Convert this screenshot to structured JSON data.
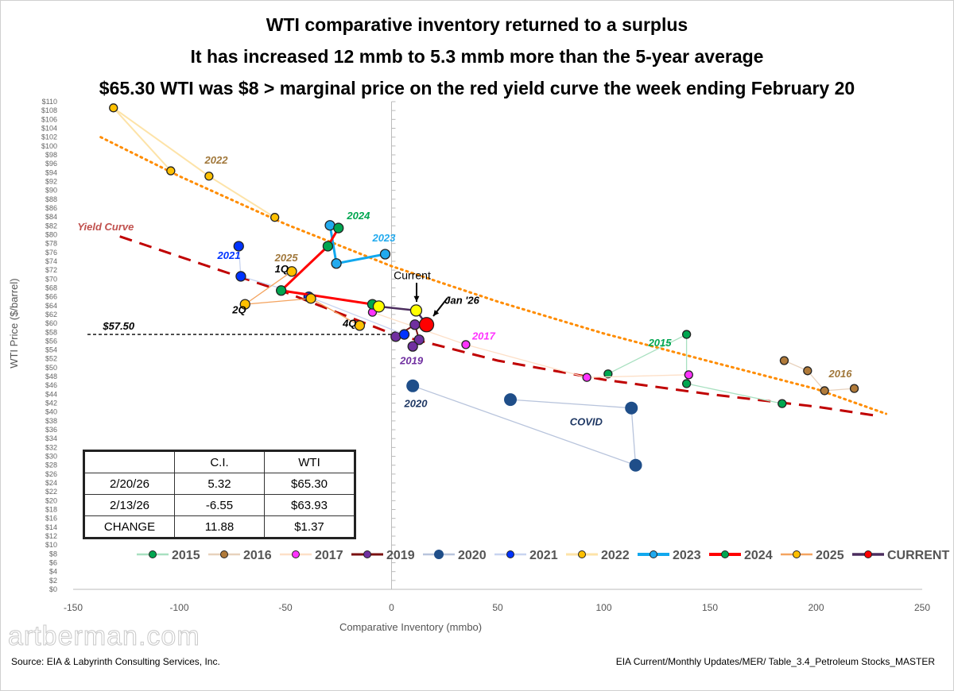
{
  "titles": [
    "WTI comparative inventory returned to a surplus",
    "It has increased 12 mmb to 5.3 mmb more than the 5-year average",
    "$65.30 WTI was $8 > marginal price on the red yield curve the week ending February 20"
  ],
  "footer": {
    "source": "Source:  EIA & Labyrinth Consulting Services, Inc.",
    "path": "EIA Current/Monthly Updates/MER/ Table_3.4_Petroleum Stocks_MASTER",
    "watermark": "artberman.com"
  },
  "table": {
    "headers": [
      "",
      "C.I.",
      "WTI"
    ],
    "rows": [
      [
        "2/20/26",
        "5.32",
        "$65.30"
      ],
      [
        "2/13/26",
        "-6.55",
        "$63.93"
      ],
      [
        "CHANGE",
        "11.88",
        "$1.37"
      ]
    ]
  },
  "chart_data": {
    "type": "scatter",
    "xlabel": "Comparative Inventory (mmbo)",
    "ylabel": "WTI Price ($/barrel)",
    "xlim": [
      -150,
      250
    ],
    "ylim": [
      0,
      110
    ],
    "xticks": [
      -150,
      -100,
      -50,
      0,
      50,
      100,
      150,
      200,
      250
    ],
    "ytick_step": 2,
    "ytick_prefix": "$",
    "grid": false,
    "legend_placement": "bottom",
    "reference_line": {
      "label": "$57.50",
      "y": 57.5
    },
    "series": [
      {
        "name": "2015",
        "color": "#00a650",
        "line": "#a8e0c0",
        "points": [
          [
            102,
            48.6
          ],
          [
            139,
            57.5
          ],
          [
            139,
            46.4
          ],
          [
            184,
            41.9
          ]
        ]
      },
      {
        "name": "2016",
        "color": "#b07a3a",
        "line": "#e8d2bd",
        "points": [
          [
            185,
            51.6
          ],
          [
            196,
            49.3
          ],
          [
            204,
            44.8
          ],
          [
            218,
            45.3
          ]
        ]
      },
      {
        "name": "2017",
        "color": "#ff33ff",
        "line": "#fde0c8",
        "points": [
          [
            -9,
            62.5
          ],
          [
            35,
            55.2
          ],
          [
            92,
            47.8
          ],
          [
            140,
            48.4
          ]
        ]
      },
      {
        "name": "2019",
        "color": "#7030a0",
        "line": "#7a1010",
        "points": [
          [
            2,
            57
          ],
          [
            11,
            59.7
          ],
          [
            13,
            56.3
          ],
          [
            10,
            54.8
          ]
        ]
      },
      {
        "name": "2020",
        "color": "#1f4e89",
        "line": "#b8c4dc",
        "points": [
          [
            10,
            45.9
          ],
          [
            115,
            28
          ],
          [
            113,
            40.9
          ],
          [
            56,
            42.8
          ]
        ]
      },
      {
        "name": "2021",
        "color": "#0033ff",
        "line": "#c8d4f0",
        "points": [
          [
            -72,
            77.4
          ],
          [
            -71,
            70.6
          ],
          [
            -39,
            66
          ],
          [
            6,
            57.5
          ]
        ]
      },
      {
        "name": "2022",
        "color": "#ffc000",
        "line": "#fde3a8",
        "points": [
          [
            -104,
            94.4
          ],
          [
            -131,
            108.6
          ],
          [
            -86,
            93.2
          ],
          [
            -55,
            83.9
          ]
        ]
      },
      {
        "name": "2023",
        "color": "#22aaee",
        "line": "#11a8ee",
        "points": [
          [
            -29,
            82.1
          ],
          [
            -26,
            73.5
          ],
          [
            -3,
            75.6
          ]
        ]
      },
      {
        "name": "2024",
        "color": "#00a650",
        "line": "#ff0000",
        "points": [
          [
            -25,
            81.5
          ],
          [
            -30,
            77.4
          ],
          [
            -52,
            67.4
          ],
          [
            -9,
            64.3
          ]
        ]
      },
      {
        "name": "2025",
        "color": "#ffc000",
        "line": "#f4a460",
        "points": [
          [
            -47,
            71.7
          ],
          [
            -69,
            64.3
          ],
          [
            -38,
            65.6
          ],
          [
            -15,
            59.5
          ]
        ]
      },
      {
        "name": "CURRENT",
        "color": "#ff0000",
        "line": "#4b2d5e",
        "points": [
          [
            -6,
            63.8
          ],
          [
            11.6,
            62.9
          ],
          [
            16.5,
            59.7
          ]
        ]
      }
    ],
    "trend_lines": [
      {
        "label": "Yield Curve",
        "color": "#c00000",
        "style": "dashed",
        "points": [
          [
            -128,
            79.6
          ],
          [
            -50,
            67
          ],
          [
            0,
            57.7
          ],
          [
            50,
            51.6
          ],
          [
            100,
            47.3
          ],
          [
            150,
            44
          ],
          [
            200,
            41.2
          ],
          [
            228,
            39.2
          ]
        ]
      },
      {
        "label": "",
        "color": "#ff8c00",
        "style": "dotted",
        "points": [
          [
            -137,
            102
          ],
          [
            -100,
            93.2
          ],
          [
            -50,
            82.4
          ],
          [
            0,
            72.9
          ],
          [
            50,
            64.9
          ],
          [
            100,
            57.7
          ],
          [
            150,
            51.4
          ],
          [
            200,
            45.2
          ],
          [
            233,
            39.6
          ]
        ]
      }
    ],
    "annotations": [
      {
        "text": "Yield Curve",
        "color": "#c0504d",
        "x": -148,
        "y": 81
      },
      {
        "text": "2022",
        "color": "#a0773a",
        "x": -88,
        "y": 96
      },
      {
        "text": "2024",
        "color": "#00a650",
        "x": -21,
        "y": 83.5
      },
      {
        "text": "2023",
        "color": "#22aaee",
        "x": -9,
        "y": 78.5
      },
      {
        "text": "2021",
        "color": "#0033ff",
        "x": -82,
        "y": 74.5
      },
      {
        "text": "2025",
        "color": "#a0773a",
        "x": -55,
        "y": 74
      },
      {
        "text": "1Q",
        "color": "#000000",
        "x": -55,
        "y": 71.5
      },
      {
        "text": "2Q",
        "color": "#000000",
        "x": -75,
        "y": 62.3
      },
      {
        "text": "4Q",
        "color": "#000000",
        "x": -23,
        "y": 59.2
      },
      {
        "text": "Current",
        "color": "#000000",
        "x": 1,
        "y": 70
      },
      {
        "text": "Jan '26",
        "color": "#000000",
        "x": 25,
        "y": 64.4
      },
      {
        "text": "2017",
        "color": "#ff33ff",
        "x": 38,
        "y": 56.3
      },
      {
        "text": "2019",
        "color": "#7030a0",
        "x": 4,
        "y": 50.8
      },
      {
        "text": "2020",
        "color": "#1f3864",
        "x": 6,
        "y": 41.1
      },
      {
        "text": "COVID",
        "color": "#1f3864",
        "x": 84,
        "y": 37
      },
      {
        "text": "2015",
        "color": "#00a650",
        "x": 121,
        "y": 54.8
      },
      {
        "text": "2016",
        "color": "#a0773a",
        "x": 206,
        "y": 47.8
      }
    ]
  }
}
